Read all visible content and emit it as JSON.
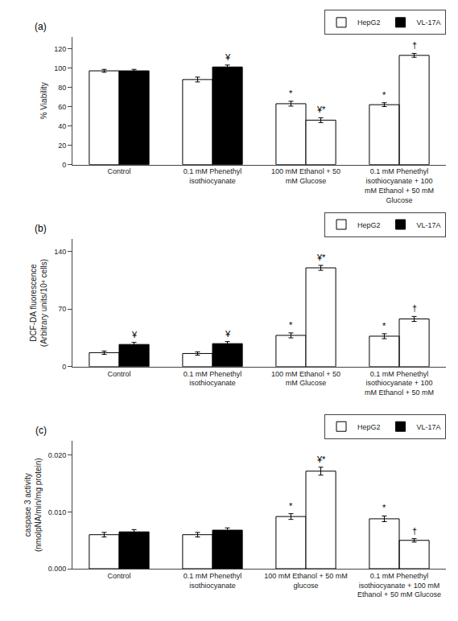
{
  "chart_data": [
    {
      "type": "bar",
      "title": "(a)",
      "y_label": "% Viability",
      "categories": [
        "Control",
        "0.1 mM Phenethyl\nisothiocyanate",
        "100 mM Ethanol + 50\nmM Glucose",
        "0.1 mM Phenethyl\nisothiocyanate + 100\nmM Ethanol + 50 mM\nGlucose"
      ],
      "series": [
        {
          "name": "HepG2",
          "colors": [
            "white",
            "white",
            "white",
            "white"
          ],
          "values": [
            97,
            88,
            63,
            62
          ],
          "errors": [
            1.5,
            2.5,
            2.5,
            2.0
          ],
          "annotations": [
            null,
            null,
            "*",
            "*"
          ]
        },
        {
          "name": "VL-17A",
          "colors": [
            "black",
            "black",
            "white",
            "white"
          ],
          "values": [
            97,
            101,
            46,
            113
          ],
          "errors": [
            1.5,
            2.0,
            2.5,
            2.0
          ],
          "annotations": [
            null,
            "¥",
            "¥*",
            "†"
          ]
        }
      ],
      "ylim": [
        0,
        132
      ],
      "yticks": [
        0,
        20,
        40,
        60,
        80,
        100,
        120
      ],
      "grid": false,
      "legend": "upper right"
    },
    {
      "type": "bar",
      "title": "(b)",
      "y_label": "DCF-DA fluorescence\n(Arbitrary units/10⁴ cells)",
      "categories": [
        "Control",
        "0.1 mM Phenethyl\nisothiocyanate",
        "100 mM Ethanol + 50\nmM Glucose",
        "0.1 mM Phenethyl\nisothiocyanate + 100\nmM Ethanol + 50 mM"
      ],
      "series": [
        {
          "name": "HepG2",
          "colors": [
            "white",
            "white",
            "white",
            "white"
          ],
          "values": [
            17,
            16,
            38,
            37
          ],
          "errors": [
            2.0,
            2.0,
            3.0,
            3.0
          ],
          "annotations": [
            null,
            null,
            "*",
            "*"
          ]
        },
        {
          "name": "VL-17A",
          "colors": [
            "black",
            "black",
            "white",
            "white"
          ],
          "values": [
            27,
            28,
            120,
            58
          ],
          "errors": [
            2.5,
            2.5,
            3.0,
            3.0
          ],
          "annotations": [
            "¥",
            "¥",
            "¥*",
            "†"
          ]
        }
      ],
      "ylim": [
        0,
        155
      ],
      "yticks": [
        0,
        70,
        140
      ],
      "grid": false,
      "legend": "upper right"
    },
    {
      "type": "bar",
      "title": "(c)",
      "y_label": "caspase 3 activity\n(nmolpNA/min/mg protein)",
      "categories": [
        "Control",
        "0.1 mM Phenethyl\nisothiocyanate",
        "100 mM Ethanol + 50 mM\nglucose",
        "0.1 mM Phenethyl\nisothiocyanate + 100 mM\nEthanol + 50 mM Glucose"
      ],
      "series": [
        {
          "name": "HepG2",
          "colors": [
            "white",
            "white",
            "white",
            "white"
          ],
          "values": [
            0.006,
            0.006,
            0.0092,
            0.0088
          ],
          "errors": [
            0.0004,
            0.0004,
            0.0005,
            0.0005
          ],
          "annotations": [
            null,
            null,
            "*",
            "*"
          ]
        },
        {
          "name": "VL-17A",
          "colors": [
            "black",
            "black",
            "white",
            "white"
          ],
          "values": [
            0.0065,
            0.0068,
            0.0172,
            0.005
          ],
          "errors": [
            0.0004,
            0.0004,
            0.0007,
            0.0003
          ],
          "annotations": [
            null,
            null,
            "¥*",
            "†"
          ]
        }
      ],
      "ylim": [
        0,
        0.0225
      ],
      "yticks": [
        {
          "value": 0.0,
          "label": "0.000"
        },
        {
          "value": 0.01,
          "label": "0.010"
        },
        {
          "value": 0.02,
          "label": "0.020"
        }
      ],
      "grid": false,
      "legend": "upper right"
    }
  ]
}
